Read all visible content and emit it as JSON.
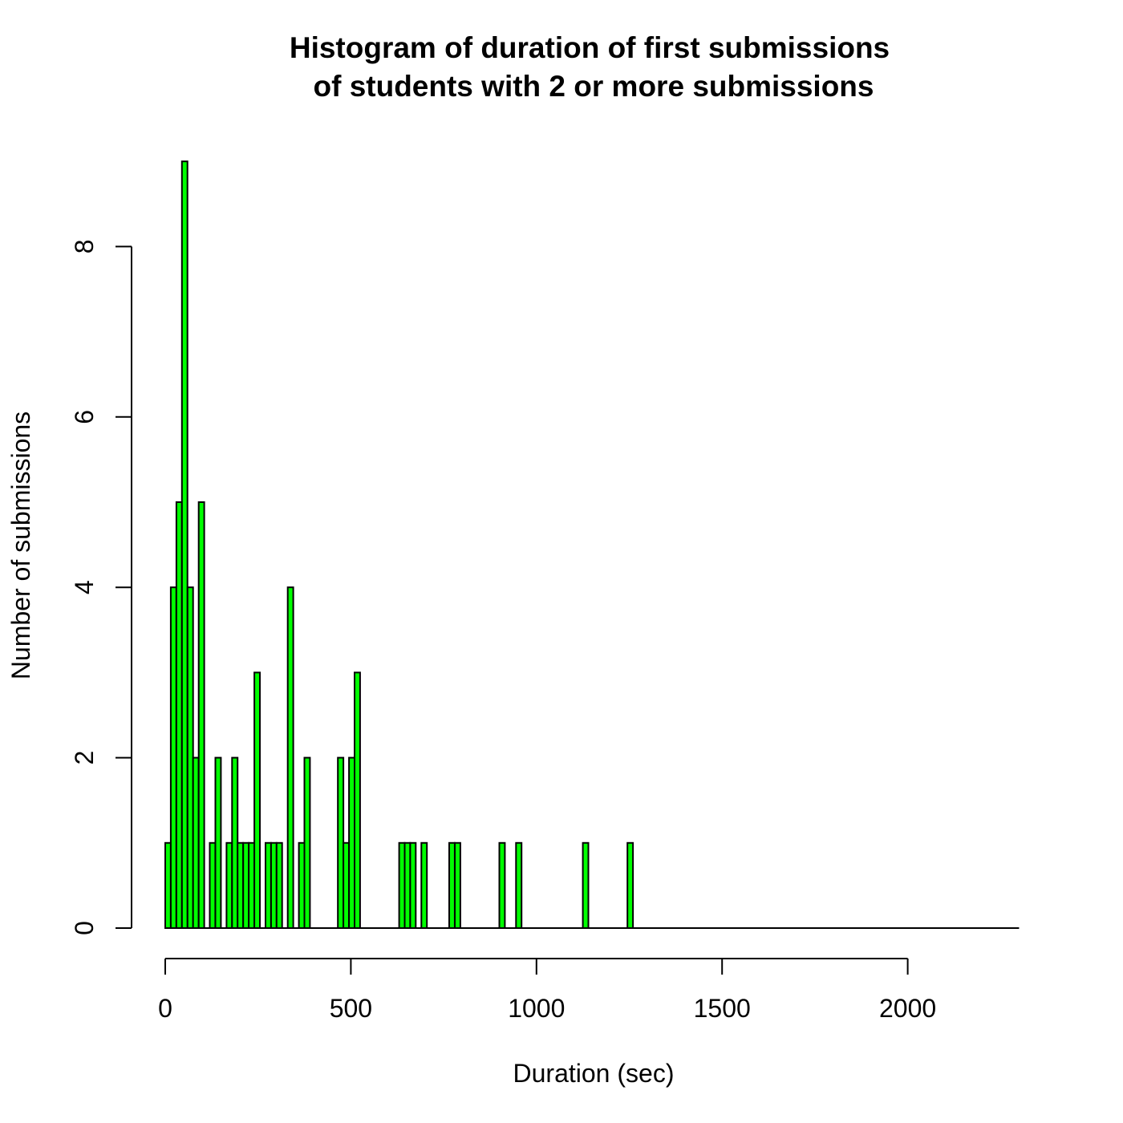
{
  "chart_data": {
    "type": "bar",
    "title_line1": "Histogram of duration of first submissions",
    "title_line2": "of students with 2 or more submissions",
    "xlabel": "Duration (sec)",
    "ylabel": "Number of submissions",
    "xlim": [
      0,
      2300
    ],
    "ylim": [
      0,
      9
    ],
    "x_ticks": [
      0,
      500,
      1000,
      1500,
      2000
    ],
    "y_ticks": [
      0,
      2,
      4,
      6,
      8
    ],
    "bin_width": 15,
    "bar_color": "#00ff00",
    "bins": [
      {
        "start": 0,
        "count": 1
      },
      {
        "start": 15,
        "count": 4
      },
      {
        "start": 30,
        "count": 5
      },
      {
        "start": 45,
        "count": 9
      },
      {
        "start": 60,
        "count": 4
      },
      {
        "start": 75,
        "count": 2
      },
      {
        "start": 90,
        "count": 5
      },
      {
        "start": 120,
        "count": 1
      },
      {
        "start": 135,
        "count": 2
      },
      {
        "start": 165,
        "count": 1
      },
      {
        "start": 180,
        "count": 2
      },
      {
        "start": 195,
        "count": 1
      },
      {
        "start": 210,
        "count": 1
      },
      {
        "start": 225,
        "count": 1
      },
      {
        "start": 240,
        "count": 3
      },
      {
        "start": 270,
        "count": 1
      },
      {
        "start": 285,
        "count": 1
      },
      {
        "start": 300,
        "count": 1
      },
      {
        "start": 330,
        "count": 4
      },
      {
        "start": 360,
        "count": 1
      },
      {
        "start": 375,
        "count": 2
      },
      {
        "start": 465,
        "count": 2
      },
      {
        "start": 480,
        "count": 1
      },
      {
        "start": 495,
        "count": 2
      },
      {
        "start": 510,
        "count": 3
      },
      {
        "start": 630,
        "count": 1
      },
      {
        "start": 645,
        "count": 1
      },
      {
        "start": 660,
        "count": 1
      },
      {
        "start": 690,
        "count": 1
      },
      {
        "start": 765,
        "count": 1
      },
      {
        "start": 780,
        "count": 1
      },
      {
        "start": 900,
        "count": 1
      },
      {
        "start": 945,
        "count": 1
      },
      {
        "start": 1125,
        "count": 1
      },
      {
        "start": 1245,
        "count": 1
      }
    ]
  }
}
